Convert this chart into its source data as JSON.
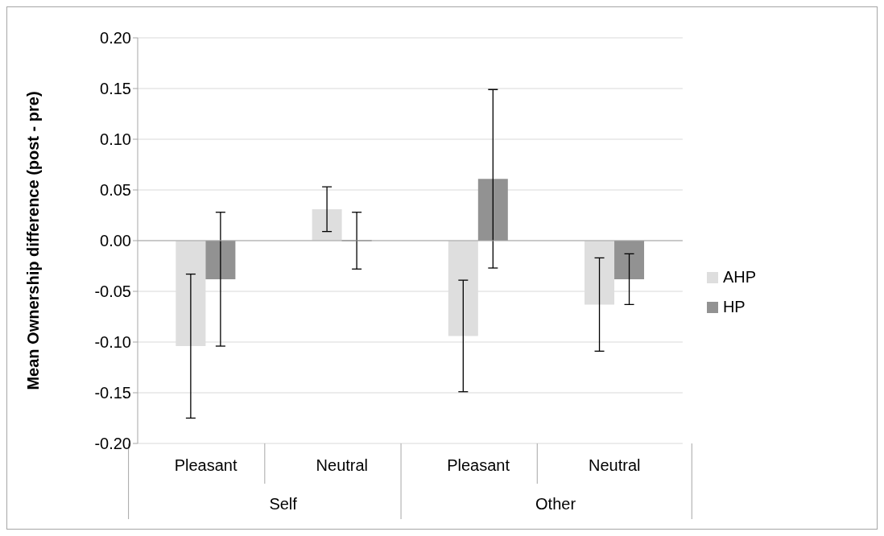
{
  "chart_data": {
    "type": "bar",
    "categories": [
      "Pleasant",
      "Neutral",
      "Pleasant",
      "Neutral"
    ],
    "annotations": [
      "Self",
      "Other"
    ],
    "ylabel": "Mean Ownership difference (post - pre)",
    "series": [
      {
        "name": "AHP",
        "color": "#dedede",
        "values": [
          -0.104,
          0.031,
          -0.094,
          -0.063
        ],
        "errors": [
          0.071,
          0.022,
          0.055,
          0.046
        ]
      },
      {
        "name": "HP",
        "color": "#929292",
        "values": [
          -0.038,
          0,
          0.061,
          -0.038
        ],
        "errors": [
          0.066,
          0.028,
          0.088,
          0.025
        ]
      }
    ],
    "ylim": [
      -0.2,
      0.2
    ],
    "yticks": [
      {
        "value": -0.2,
        "label": "-0.20"
      },
      {
        "value": -0.15,
        "label": "-0.15"
      },
      {
        "value": -0.1,
        "label": "-0.10"
      },
      {
        "value": -0.05,
        "label": "-0.05"
      },
      {
        "value": 0,
        "label": "0.00"
      },
      {
        "value": 0.05,
        "label": "0.05"
      },
      {
        "value": 0.1,
        "label": "0.10"
      },
      {
        "value": 0.15,
        "label": "0.15"
      },
      {
        "value": 0.2,
        "label": "0.20"
      }
    ],
    "grid": "y",
    "legend": "right"
  }
}
